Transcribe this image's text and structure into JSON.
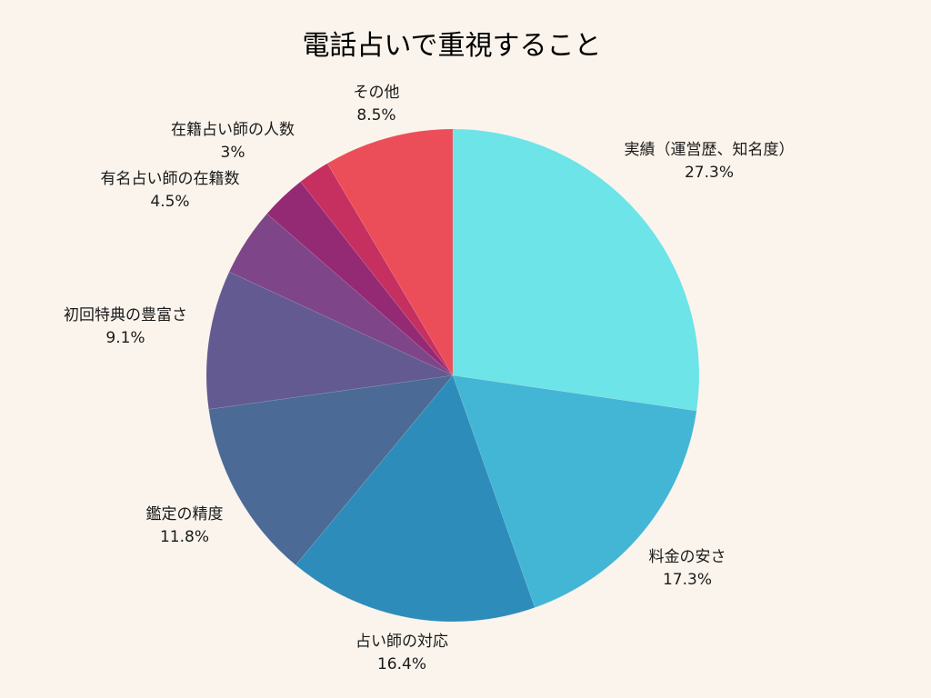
{
  "chart_data": {
    "type": "pie",
    "title": "電話占いで重視すること",
    "slices": [
      {
        "label": "実績（運営歴、知名度）",
        "value": 27.3,
        "value_label": "27.3%",
        "color": "#6ce4e8"
      },
      {
        "label": "料金の安さ",
        "value": 17.3,
        "value_label": "17.3%",
        "color": "#43b6d5"
      },
      {
        "label": "占い師の対応",
        "value": 16.4,
        "value_label": "16.4%",
        "color": "#2d8cba"
      },
      {
        "label": "鑑定の精度",
        "value": 11.8,
        "value_label": "11.8%",
        "color": "#4b6a96"
      },
      {
        "label": "初回特典の豊富さ",
        "value": 9.1,
        "value_label": "9.1%",
        "color": "#625a91"
      },
      {
        "label": "有名占い師の在籍数",
        "value": 4.5,
        "value_label": "4.5%",
        "color": "#7e4688"
      },
      {
        "label": "在籍占い師の人数",
        "value": 3,
        "value_label": "3%",
        "color": "#952a74"
      },
      {
        "label": "",
        "value": 2.1,
        "value_label": "",
        "color": "#c53060"
      },
      {
        "label": "その他",
        "value": 8.5,
        "value_label": "8.5%",
        "color": "#ec4e59"
      }
    ]
  }
}
